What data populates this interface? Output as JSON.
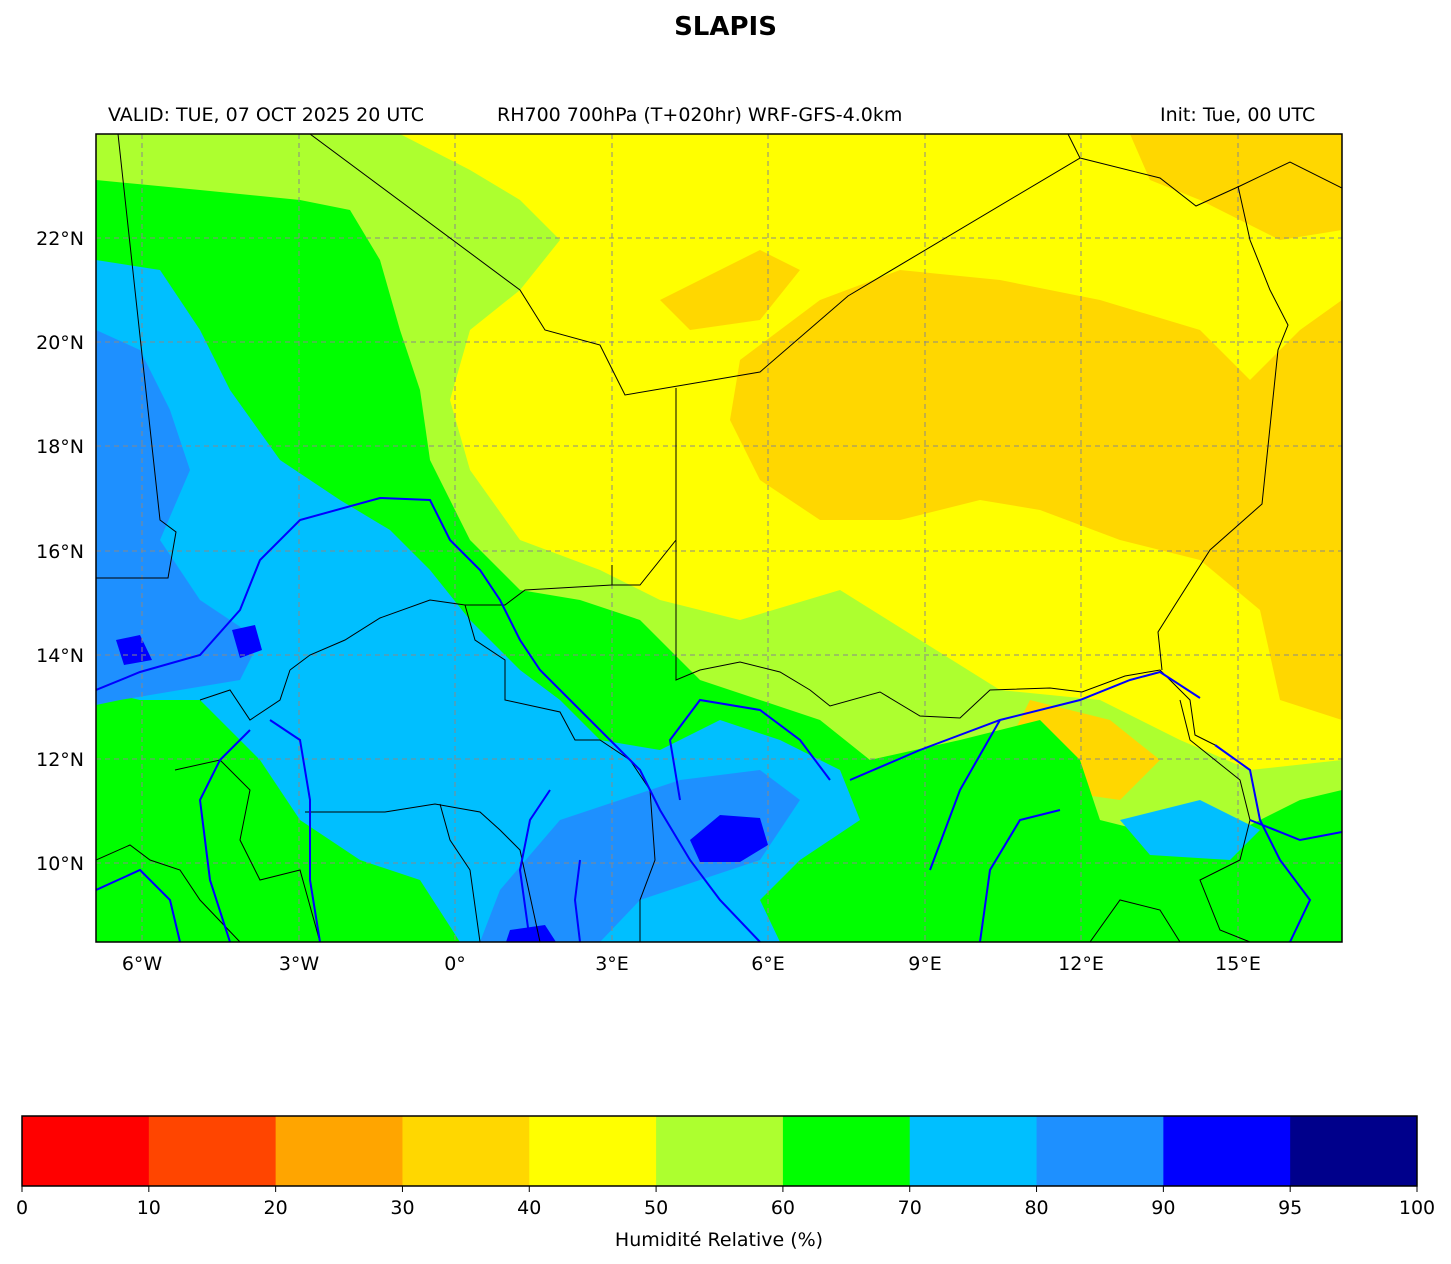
{
  "header": {
    "title": "SLAPIS",
    "valid": "VALID: TUE, 07 OCT 2025 20 UTC",
    "product": "RH700 700hPa (T+020hr) WRF-GFS-4.0km",
    "init": "Init: Tue, 00 UTC"
  },
  "map": {
    "lon_range": [
      -7,
      17
    ],
    "lat_range": [
      8.5,
      24
    ],
    "lon_ticks": [
      {
        "value": -6,
        "label": "6°W"
      },
      {
        "value": -3,
        "label": "3°W"
      },
      {
        "value": 0,
        "label": "0°"
      },
      {
        "value": 3,
        "label": "3°E"
      },
      {
        "value": 6,
        "label": "6°E"
      },
      {
        "value": 9,
        "label": "9°E"
      },
      {
        "value": 12,
        "label": "12°E"
      },
      {
        "value": 15,
        "label": "15°E"
      }
    ],
    "lat_ticks": [
      {
        "value": 22,
        "label": "22°N"
      },
      {
        "value": 20,
        "label": "20°N"
      },
      {
        "value": 18,
        "label": "18°N"
      },
      {
        "value": 16,
        "label": "16°N"
      },
      {
        "value": 14,
        "label": "14°N"
      },
      {
        "value": 12,
        "label": "12°N"
      },
      {
        "value": 10,
        "label": "10°N"
      }
    ],
    "gridlines": true,
    "border_color": "#000000",
    "river_color": "#0000ff"
  },
  "colorbar": {
    "label": "Humidité Relative (%)",
    "boundaries": [
      "0",
      "10",
      "20",
      "30",
      "40",
      "50",
      "60",
      "70",
      "80",
      "90",
      "95",
      "100"
    ],
    "colors": [
      "#ff0000",
      "#ff4500",
      "#ffa500",
      "#ffd700",
      "#ffff00",
      "#adff2f",
      "#00ff00",
      "#00bfff",
      "#1e90ff",
      "#0000ff",
      "#00008b"
    ]
  }
}
